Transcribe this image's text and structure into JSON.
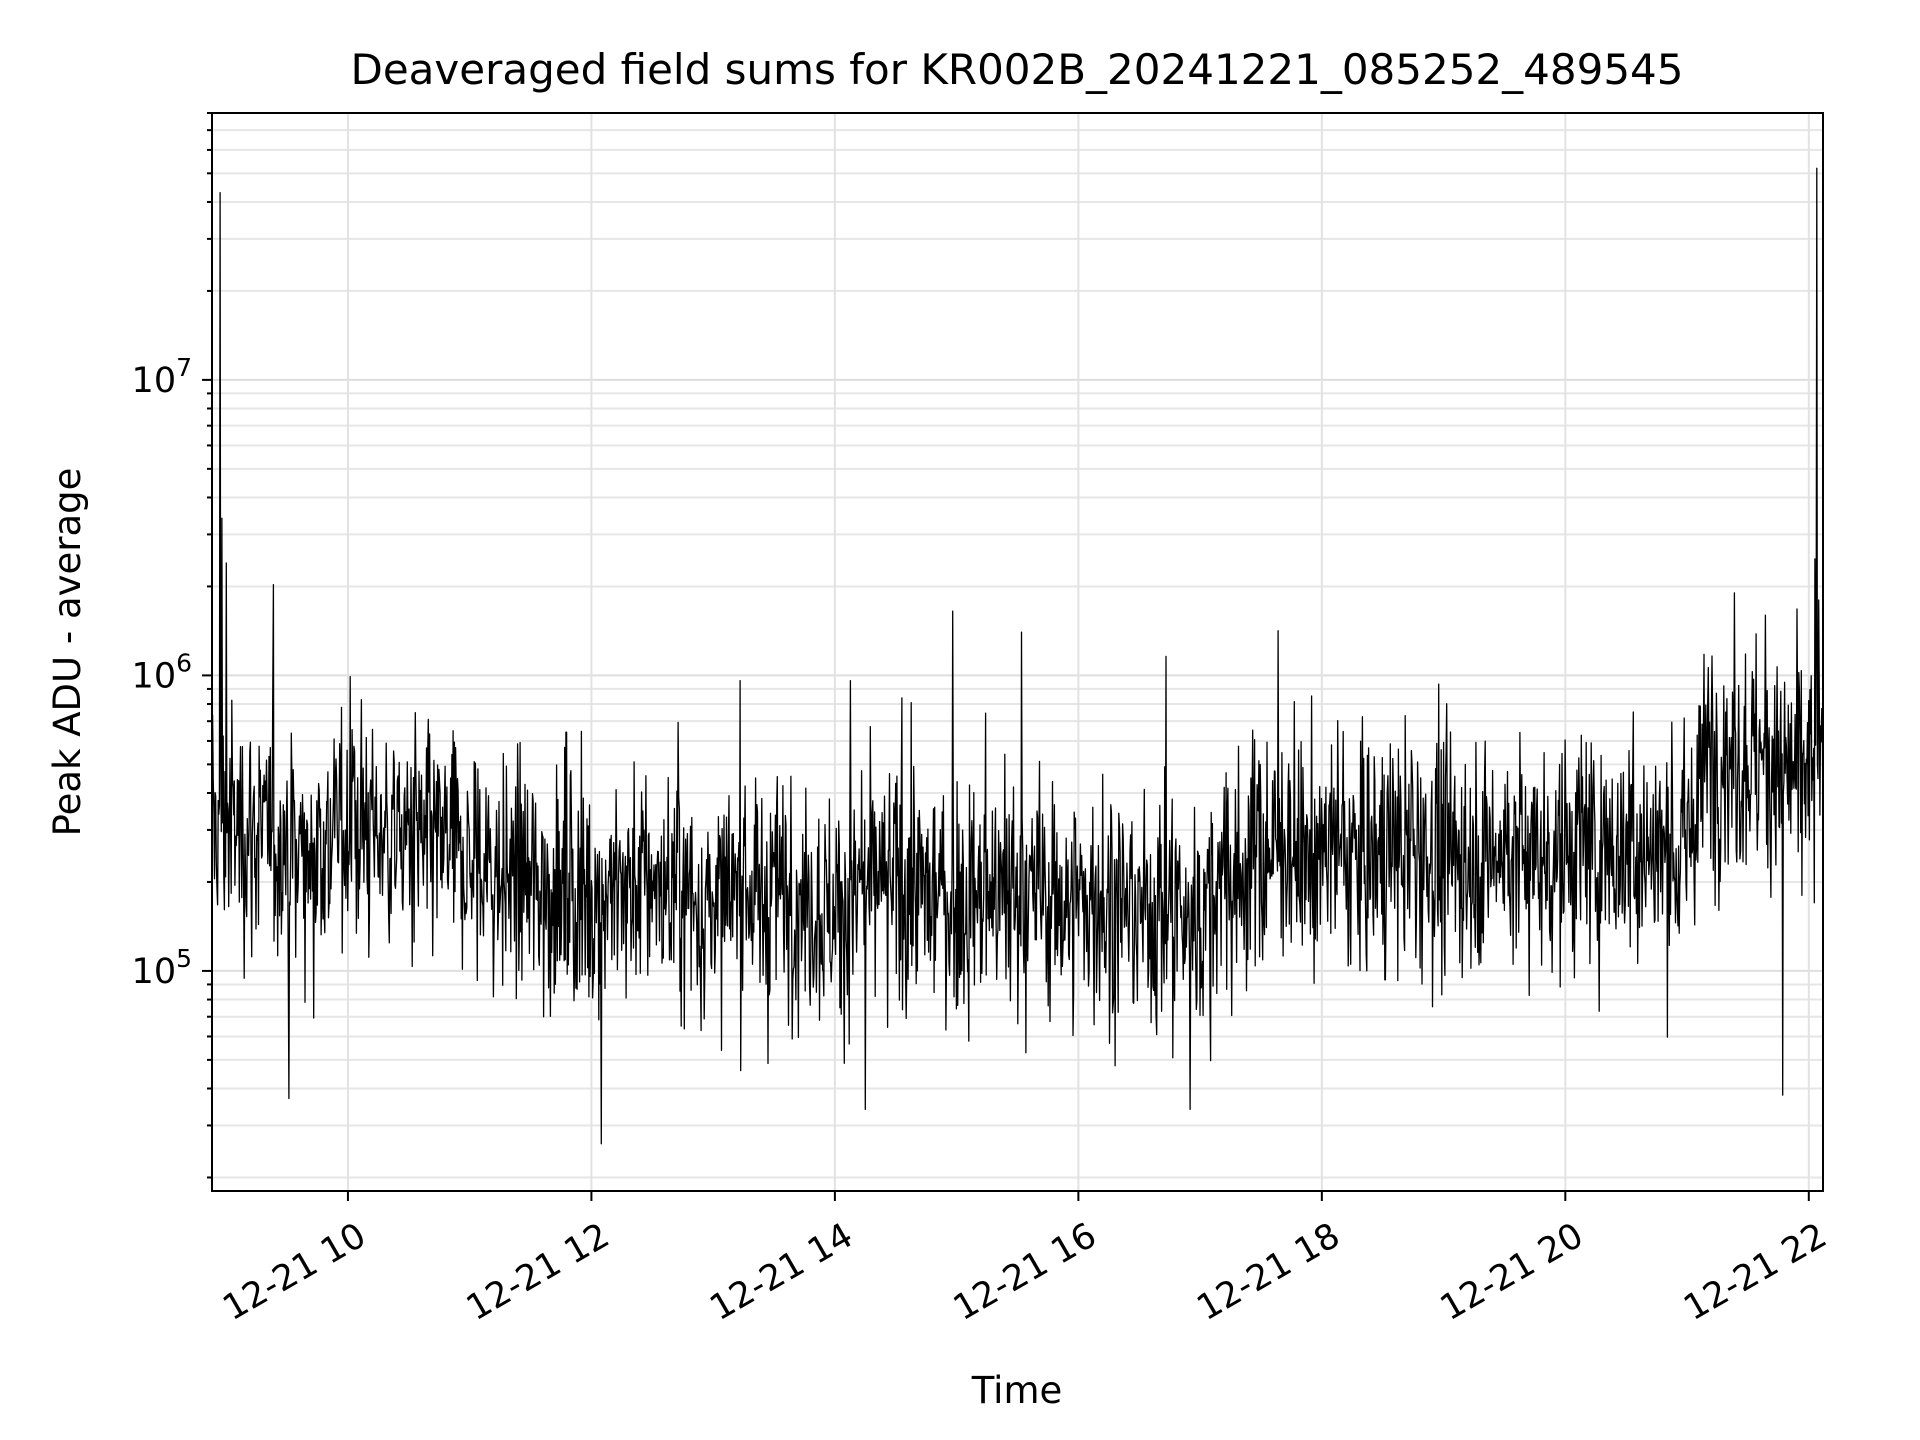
{
  "chart_data": {
    "type": "line",
    "title": "Deaveraged field sums for KR002B_20241221_085252_489545",
    "xlabel": "Time",
    "ylabel": "Peak ADU - average",
    "x_range": [
      "2024-12-21T08:53:00",
      "2024-12-21T22:07:00"
    ],
    "y_scale": "log",
    "y_range": [
      18000,
      80000000
    ],
    "grid": true,
    "x_ticks": [
      {
        "value": "2024-12-21T10:00:00",
        "label": "12-21 10"
      },
      {
        "value": "2024-12-21T12:00:00",
        "label": "12-21 12"
      },
      {
        "value": "2024-12-21T14:00:00",
        "label": "12-21 14"
      },
      {
        "value": "2024-12-21T16:00:00",
        "label": "12-21 16"
      },
      {
        "value": "2024-12-21T18:00:00",
        "label": "12-21 18"
      },
      {
        "value": "2024-12-21T20:00:00",
        "label": "12-21 20"
      },
      {
        "value": "2024-12-21T22:00:00",
        "label": "12-21 22"
      }
    ],
    "y_ticks": [
      {
        "value": 100000,
        "base": "10",
        "exp": "5"
      },
      {
        "value": 1000000,
        "base": "10",
        "exp": "6"
      },
      {
        "value": 10000000,
        "base": "10",
        "exp": "7"
      }
    ],
    "series": [
      {
        "color": "#000000",
        "baseline": [
          {
            "t": "2024-12-21T08:53:00",
            "v": 320000
          },
          {
            "t": "2024-12-21T09:10:00",
            "v": 300000
          },
          {
            "t": "2024-12-21T09:40:00",
            "v": 250000
          },
          {
            "t": "2024-12-21T10:00:00",
            "v": 320000
          },
          {
            "t": "2024-12-21T10:30:00",
            "v": 280000
          },
          {
            "t": "2024-12-21T11:00:00",
            "v": 230000
          },
          {
            "t": "2024-12-21T11:30:00",
            "v": 190000
          },
          {
            "t": "2024-12-21T12:00:00",
            "v": 180000
          },
          {
            "t": "2024-12-21T12:30:00",
            "v": 200000
          },
          {
            "t": "2024-12-21T13:00:00",
            "v": 160000
          },
          {
            "t": "2024-12-21T13:30:00",
            "v": 190000
          },
          {
            "t": "2024-12-21T14:00:00",
            "v": 160000
          },
          {
            "t": "2024-12-21T14:30:00",
            "v": 200000
          },
          {
            "t": "2024-12-21T15:00:00",
            "v": 170000
          },
          {
            "t": "2024-12-21T15:30:00",
            "v": 180000
          },
          {
            "t": "2024-12-21T16:00:00",
            "v": 170000
          },
          {
            "t": "2024-12-21T16:30:00",
            "v": 160000
          },
          {
            "t": "2024-12-21T17:00:00",
            "v": 150000
          },
          {
            "t": "2024-12-21T17:30:00",
            "v": 260000
          },
          {
            "t": "2024-12-21T18:00:00",
            "v": 250000
          },
          {
            "t": "2024-12-21T18:30:00",
            "v": 250000
          },
          {
            "t": "2024-12-21T19:00:00",
            "v": 250000
          },
          {
            "t": "2024-12-21T19:30:00",
            "v": 250000
          },
          {
            "t": "2024-12-21T20:00:00",
            "v": 250000
          },
          {
            "t": "2024-12-21T20:30:00",
            "v": 260000
          },
          {
            "t": "2024-12-21T21:00:00",
            "v": 250000
          },
          {
            "t": "2024-12-21T21:10:00",
            "v": 550000
          },
          {
            "t": "2024-12-21T21:40:00",
            "v": 500000
          },
          {
            "t": "2024-12-21T22:07:00",
            "v": 450000
          }
        ],
        "noise_decades": 0.28,
        "samples": 2600,
        "spikes": [
          {
            "t": "2024-12-21T08:57:00",
            "v": 43000000
          },
          {
            "t": "2024-12-21T08:58:00",
            "v": 3400000
          },
          {
            "t": "2024-12-21T09:00:00",
            "v": 2400000
          },
          {
            "t": "2024-12-21T09:31:00",
            "v": 37000
          },
          {
            "t": "2024-12-21T12:05:00",
            "v": 26000
          },
          {
            "t": "2024-12-21T14:15:00",
            "v": 34000
          },
          {
            "t": "2024-12-21T14:58:00",
            "v": 1650000
          },
          {
            "t": "2024-12-21T15:32:00",
            "v": 1400000
          },
          {
            "t": "2024-12-21T16:55:00",
            "v": 34000
          },
          {
            "t": "2024-12-21T21:47:00",
            "v": 38000
          },
          {
            "t": "2024-12-21T22:04:00",
            "v": 52000000
          },
          {
            "t": "2024-12-21T22:05:00",
            "v": 1800000
          }
        ]
      }
    ]
  }
}
